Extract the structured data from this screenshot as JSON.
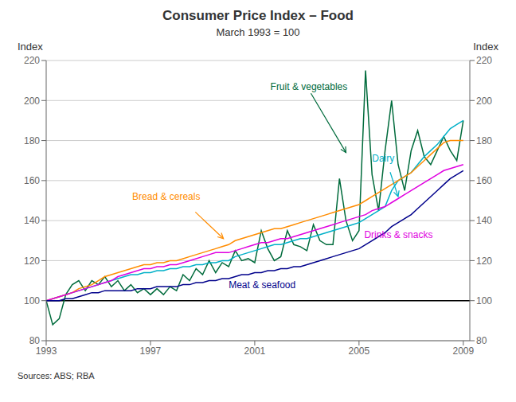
{
  "chart_data": {
    "type": "line",
    "title": "Consumer Price Index – Food",
    "subtitle": "March 1993 = 100",
    "ylabel": "Index",
    "y2label": "Index",
    "source": "Sources: ABS; RBA",
    "xlim": [
      1993.0,
      2009.25
    ],
    "xticks": [
      1993,
      1997,
      2001,
      2005,
      2009
    ],
    "ylim": [
      80,
      220
    ],
    "yticks": [
      80,
      100,
      120,
      140,
      160,
      180,
      200,
      220
    ],
    "y2lim": [
      80,
      220
    ],
    "y2ticks": [
      80,
      100,
      120,
      140,
      160,
      180,
      200,
      220
    ],
    "grid": true,
    "reference_lines": [
      {
        "y": 100,
        "color": "black"
      }
    ],
    "x": [
      1993.0,
      1993.25,
      1993.5,
      1993.75,
      1994.0,
      1994.25,
      1994.5,
      1994.75,
      1995.0,
      1995.25,
      1995.5,
      1995.75,
      1996.0,
      1996.25,
      1996.5,
      1996.75,
      1997.0,
      1997.25,
      1997.5,
      1997.75,
      1998.0,
      1998.25,
      1998.5,
      1998.75,
      1999.0,
      1999.25,
      1999.5,
      1999.75,
      2000.0,
      2000.25,
      2000.5,
      2000.75,
      2001.0,
      2001.25,
      2001.5,
      2001.75,
      2002.0,
      2002.25,
      2002.5,
      2002.75,
      2003.0,
      2003.25,
      2003.5,
      2003.75,
      2004.0,
      2004.25,
      2004.5,
      2004.75,
      2005.0,
      2005.25,
      2005.5,
      2005.75,
      2006.0,
      2006.25,
      2006.5,
      2006.75,
      2007.0,
      2007.25,
      2007.5,
      2007.75,
      2008.0,
      2008.25,
      2008.5,
      2008.75,
      2009.0
    ],
    "series": [
      {
        "name": "Fruit & vegetables",
        "color": "#006b3c",
        "values": [
          100,
          88,
          91,
          103,
          108,
          110,
          105,
          110,
          108,
          112,
          107,
          110,
          105,
          108,
          104,
          106,
          103,
          106,
          103,
          107,
          105,
          113,
          110,
          116,
          113,
          120,
          114,
          119,
          117,
          125,
          120,
          121,
          119,
          135,
          126,
          120,
          122,
          135,
          128,
          127,
          125,
          138,
          130,
          128,
          128,
          161,
          140,
          130,
          135,
          215,
          163,
          145,
          175,
          200,
          168,
          155,
          175,
          185,
          172,
          168,
          175,
          182,
          175,
          170,
          190
        ]
      },
      {
        "name": "Dairy",
        "color": "#00b0c8",
        "values": [
          100,
          101,
          102,
          103,
          104,
          105,
          106,
          107,
          108,
          109,
          110,
          111,
          112,
          113,
          113,
          114,
          114,
          115,
          115,
          116,
          116,
          117,
          117,
          118,
          118,
          119,
          119,
          120,
          120,
          122,
          123,
          124,
          125,
          126,
          127,
          128,
          128,
          129,
          130,
          131,
          131,
          132,
          133,
          134,
          135,
          136,
          137,
          138,
          139,
          141,
          143,
          145,
          147,
          155,
          160,
          162,
          164,
          168,
          172,
          175,
          178,
          182,
          186,
          188,
          190
        ]
      },
      {
        "name": "Bread & cereals",
        "color": "#ff8c00",
        "values": [
          100,
          101,
          102,
          103,
          104,
          106,
          107,
          108,
          110,
          112,
          113,
          114,
          115,
          116,
          117,
          118,
          118,
          119,
          119,
          120,
          120,
          121,
          122,
          123,
          124,
          125,
          126,
          127,
          128,
          130,
          131,
          132,
          133,
          134,
          135,
          136,
          136,
          137,
          138,
          139,
          140,
          141,
          142,
          143,
          144,
          145,
          146,
          147,
          148,
          150,
          152,
          154,
          156,
          158,
          160,
          162,
          164,
          167,
          170,
          173,
          176,
          179,
          180,
          180,
          180
        ]
      },
      {
        "name": "Drinks & snacks",
        "color": "#e000e0",
        "values": [
          100,
          101,
          102,
          103,
          104,
          105,
          106,
          107,
          108,
          109,
          110,
          112,
          113,
          114,
          115,
          116,
          116,
          117,
          117,
          118,
          118,
          119,
          120,
          121,
          122,
          123,
          124,
          124,
          124,
          125,
          126,
          127,
          128,
          129,
          129,
          130,
          131,
          131,
          132,
          133,
          134,
          135,
          136,
          137,
          138,
          139,
          140,
          141,
          142,
          143,
          145,
          146,
          147,
          149,
          151,
          153,
          155,
          157,
          159,
          161,
          163,
          165,
          166,
          167,
          168
        ]
      },
      {
        "name": "Meat & seafood",
        "color": "#00008b",
        "values": [
          100,
          100,
          100,
          101,
          101,
          102,
          103,
          104,
          104,
          105,
          105,
          105,
          105,
          105,
          106,
          106,
          106,
          107,
          107,
          107,
          107,
          108,
          108,
          109,
          109,
          110,
          110,
          111,
          111,
          112,
          113,
          113,
          114,
          114,
          115,
          115,
          116,
          116,
          117,
          117,
          118,
          119,
          120,
          121,
          122,
          123,
          124,
          125,
          126,
          128,
          130,
          132,
          134,
          137,
          139,
          141,
          143,
          146,
          149,
          152,
          155,
          158,
          161,
          163,
          165
        ]
      }
    ],
    "annotations": [
      {
        "text": "Fruit & vegetables",
        "color": "#006b3c",
        "x": 2001.6,
        "y": 207,
        "arrow_from": [
          2003.0,
          207
        ],
        "arrow_to": [
          2004.5,
          174
        ]
      },
      {
        "text": "Dairy",
        "color": "#00b0c8",
        "x": 2005.5,
        "y": 171,
        "arrow_from": [
          2006.1,
          168
        ],
        "arrow_to": [
          2006.5,
          152
        ]
      },
      {
        "text": "Bread & cereals",
        "color": "#ff8c00",
        "x": 1996.3,
        "y": 152,
        "arrow_from": [
          1998.5,
          147
        ],
        "arrow_to": [
          1999.8,
          131
        ]
      },
      {
        "text": "Drinks & snacks",
        "color": "#e000e0",
        "x": 2005.2,
        "y": 133
      },
      {
        "text": "Meat & seafood",
        "color": "#00008b",
        "x": 2000.0,
        "y": 108
      }
    ]
  }
}
